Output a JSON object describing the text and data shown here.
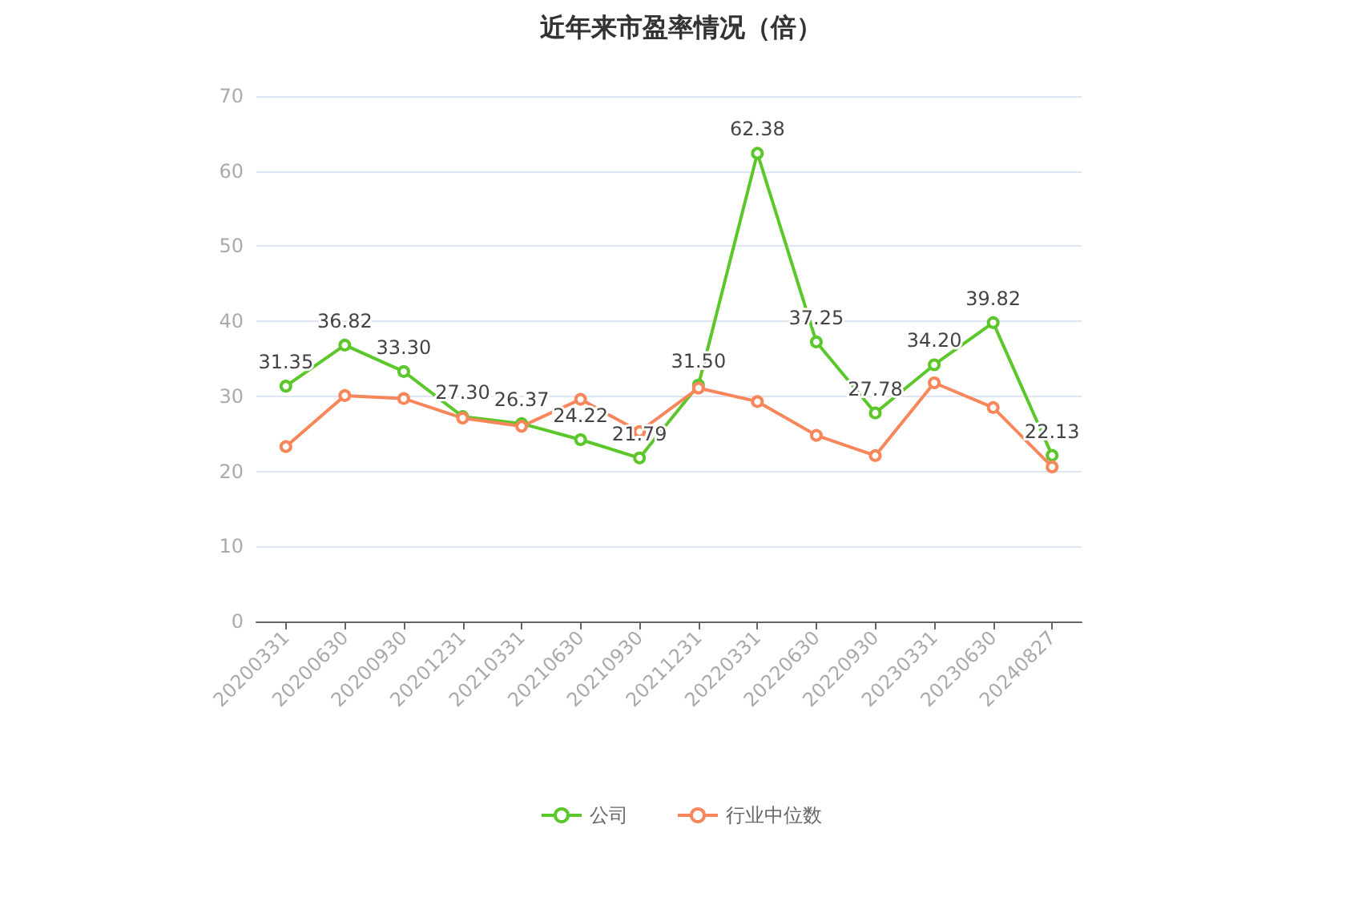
{
  "chart_data": {
    "type": "line",
    "title": "近年来市盈率情况（倍）",
    "categories": [
      "20200331",
      "20200630",
      "20200930",
      "20201231",
      "20210331",
      "20210630",
      "20210930",
      "20211231",
      "20220331",
      "20220630",
      "20220930",
      "20230331",
      "20230630",
      "20240827"
    ],
    "series": [
      {
        "name": "公司",
        "color": "#5cc72a",
        "values": [
          31.35,
          36.82,
          33.3,
          27.3,
          26.37,
          24.22,
          21.79,
          31.5,
          62.38,
          37.25,
          27.78,
          34.2,
          39.82,
          22.13
        ],
        "value_labels": [
          "31.35",
          "36.82",
          "33.30",
          "27.30",
          "26.37",
          "24.22",
          "21.79",
          "31.50",
          "62.38",
          "37.25",
          "27.78",
          "34.20",
          "39.82",
          "22.13"
        ]
      },
      {
        "name": "行业中位数",
        "color": "#f7875a",
        "values": [
          23.3,
          30.1,
          29.7,
          27.1,
          26.0,
          29.6,
          25.3,
          31.1,
          29.3,
          24.8,
          22.1,
          31.8,
          28.5,
          20.6
        ]
      }
    ],
    "ylim": [
      0,
      70
    ],
    "yticks": [
      0,
      10,
      20,
      30,
      40,
      50,
      60,
      70
    ],
    "grid": "y",
    "legend": "bottom",
    "marker": "circle",
    "line_style": "solid"
  }
}
